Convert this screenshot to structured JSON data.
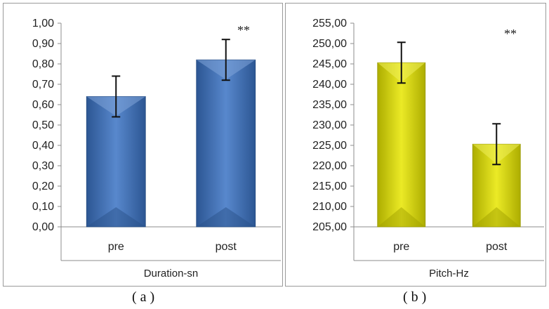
{
  "chart_data": [
    {
      "type": "bar",
      "categories": [
        "pre",
        "post"
      ],
      "values": [
        0.64,
        0.82
      ],
      "errors": [
        0.1,
        0.1
      ],
      "xlabel": "Duration-sn",
      "ylim": [
        0,
        1
      ],
      "yticks": [
        "0,00",
        "0,10",
        "0,20",
        "0,30",
        "0,40",
        "0,50",
        "0,60",
        "0,70",
        "0,80",
        "0,90",
        "1,00"
      ],
      "annotation": "**",
      "color": "#3a73c4",
      "caption": "( a )"
    },
    {
      "type": "bar",
      "categories": [
        "pre",
        "post"
      ],
      "values": [
        245.3,
        225.3
      ],
      "errors": [
        5.0,
        5.0
      ],
      "xlabel": "Pitch-Hz",
      "ylim": [
        205,
        255
      ],
      "yticks": [
        "205,00",
        "210,00",
        "215,00",
        "220,00",
        "225,00",
        "230,00",
        "235,00",
        "240,00",
        "245,00",
        "250,00",
        "255,00"
      ],
      "annotation": "**",
      "color": "#e7e600",
      "caption": "( b )"
    }
  ]
}
